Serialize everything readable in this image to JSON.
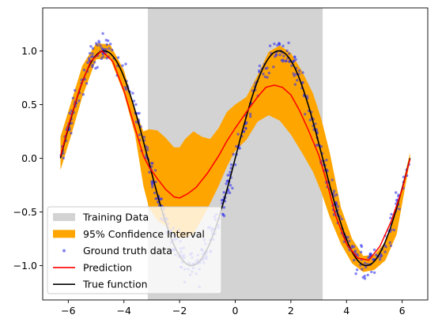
{
  "chart_data": {
    "type": "line",
    "title": "",
    "xlabel": "",
    "ylabel": "",
    "xlim": [
      -6.92,
      6.92
    ],
    "ylim": [
      -1.32,
      1.4
    ],
    "x_ticks": [
      -6,
      -4,
      -2,
      0,
      2,
      4,
      6
    ],
    "y_ticks": [
      -1.0,
      -0.5,
      0.0,
      0.5,
      1.0
    ],
    "x_tick_labels": [
      "−6",
      "−4",
      "−2",
      "0",
      "2",
      "4",
      "6"
    ],
    "y_tick_labels": [
      "−1.0",
      "−0.5",
      "0.0",
      "0.5",
      "1.0"
    ],
    "grid": false,
    "legend_position": "lower-left",
    "shaded_region": {
      "x0": -3.1416,
      "x1": 3.1416,
      "color": "#d3d3d3"
    },
    "confidence_interval": {
      "x": [
        -6.28,
        -5.9,
        -5.5,
        -5.0,
        -4.5,
        -4.0,
        -3.6,
        -3.3,
        -3.1,
        -2.8,
        -2.5,
        -2.2,
        -2.0,
        -1.8,
        -1.5,
        -1.2,
        -0.9,
        -0.6,
        -0.3,
        0.0,
        0.4,
        0.8,
        1.2,
        1.6,
        2.0,
        2.4,
        2.8,
        3.1,
        3.4,
        3.8,
        4.2,
        4.6,
        5.0,
        5.4,
        5.8,
        6.28
      ],
      "lower": [
        -0.11,
        0.21,
        0.57,
        0.92,
        0.93,
        0.6,
        0.22,
        -0.26,
        -0.46,
        -0.58,
        -0.63,
        -0.7,
        -0.74,
        -0.74,
        -0.7,
        -0.57,
        -0.42,
        -0.26,
        -0.08,
        0.07,
        0.17,
        0.34,
        0.4,
        0.35,
        0.22,
        0.05,
        -0.13,
        -0.32,
        -0.55,
        -0.8,
        -0.98,
        -1.06,
        -1.04,
        -0.95,
        -0.71,
        -0.02
      ],
      "upper": [
        0.2,
        0.52,
        0.86,
        1.07,
        1.06,
        0.82,
        0.45,
        0.25,
        0.27,
        0.26,
        0.19,
        0.1,
        0.1,
        0.18,
        0.25,
        0.2,
        0.18,
        0.28,
        0.43,
        0.5,
        0.57,
        0.77,
        0.99,
        1.05,
        0.98,
        0.81,
        0.6,
        0.36,
        0.05,
        -0.46,
        -0.75,
        -0.91,
        -0.9,
        -0.78,
        -0.48,
        0.05
      ],
      "color": "#ffa500"
    },
    "ground_truth_noise_sd": 0.07,
    "series": [
      {
        "name": "Training Data",
        "kind": "shaded-region",
        "color": "#d3d3d3"
      },
      {
        "name": "95% Confidence Interval",
        "kind": "band",
        "color": "#ffa500"
      },
      {
        "name": "Ground truth data",
        "kind": "scatter",
        "color": "#3333ee",
        "function": "sin"
      },
      {
        "name": "Prediction",
        "kind": "line",
        "color": "#ff0000",
        "x": [
          -6.28,
          -6.0,
          -5.6,
          -5.2,
          -4.8,
          -4.4,
          -4.0,
          -3.6,
          -3.3,
          -3.1,
          -2.8,
          -2.5,
          -2.2,
          -2.0,
          -1.7,
          -1.4,
          -1.0,
          -0.6,
          -0.3,
          0.0,
          0.4,
          0.8,
          1.1,
          1.4,
          1.7,
          2.0,
          2.3,
          2.6,
          3.0,
          3.3,
          3.6,
          4.0,
          4.4,
          4.8,
          5.2,
          5.6,
          6.0,
          6.28
        ],
        "y": [
          0.02,
          0.3,
          0.64,
          0.9,
          1.0,
          0.9,
          0.63,
          0.28,
          0.02,
          -0.08,
          -0.19,
          -0.29,
          -0.36,
          -0.37,
          -0.33,
          -0.27,
          -0.14,
          0.02,
          0.16,
          0.28,
          0.43,
          0.57,
          0.66,
          0.68,
          0.66,
          0.59,
          0.45,
          0.28,
          0.03,
          -0.23,
          -0.53,
          -0.8,
          -0.93,
          -0.95,
          -0.82,
          -0.59,
          -0.29,
          -0.01
        ]
      },
      {
        "name": "True function",
        "kind": "line",
        "color": "#000000",
        "function": "sin"
      }
    ]
  }
}
